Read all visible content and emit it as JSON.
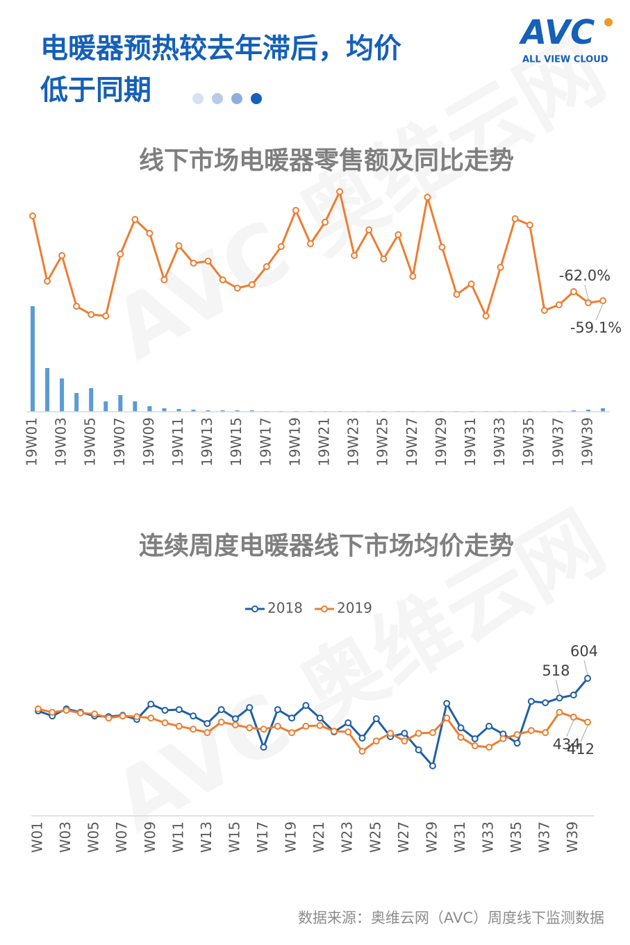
{
  "header": {
    "title_line1": "电暖器预热较去年滞后，均价",
    "title_line2": "低于同期"
  },
  "logo": {
    "mark": "AVC",
    "tagline": "ALL VIEW CLOUD"
  },
  "source": "数据来源：奥维云网（AVC）周度线下监测数据",
  "chart_data": [
    {
      "type": "combo",
      "title": "线下市场电暖器零售额及同比走势",
      "categories": [
        "19W01",
        null,
        "19W03",
        null,
        "19W05",
        null,
        "19W07",
        null,
        "19W09",
        null,
        "19W11",
        null,
        "19W13",
        null,
        "19W15",
        null,
        "19W17",
        null,
        "19W19",
        null,
        "19W21",
        null,
        "19W23",
        null,
        "19W25",
        null,
        "19W27",
        null,
        "19W29",
        null,
        "19W31",
        null,
        "19W33",
        null,
        "19W35",
        null,
        "19W37",
        null,
        "19W39",
        null
      ],
      "series": [
        {
          "type": "bar",
          "color": "#5b9bd5",
          "values": [
            152,
            63,
            48,
            27,
            34,
            15,
            24,
            15,
            8,
            5,
            4,
            3,
            2,
            2,
            2,
            2,
            1,
            1,
            1,
            1,
            1,
            1,
            1,
            1,
            1,
            1,
            1,
            1,
            1,
            1,
            1,
            1,
            1,
            1,
            1,
            1,
            1,
            2,
            3,
            5
          ]
        },
        {
          "type": "line",
          "color": "#ed7d31",
          "values": [
            63,
            -31,
            6,
            -67,
            -79,
            -81,
            8,
            58,
            38,
            -29,
            20,
            -5,
            -2,
            -29,
            -41,
            -36,
            -10,
            19,
            71,
            23,
            54,
            98,
            6,
            43,
            1,
            36,
            -24,
            90,
            18,
            -50,
            -35,
            -81,
            -11,
            59,
            50,
            -73,
            -65,
            -46,
            -62.0,
            -59.1
          ],
          "value_labels": [
            null,
            null,
            null,
            null,
            null,
            null,
            null,
            null,
            null,
            null,
            null,
            null,
            null,
            null,
            null,
            null,
            null,
            null,
            null,
            null,
            null,
            null,
            null,
            null,
            null,
            null,
            null,
            null,
            null,
            null,
            null,
            null,
            null,
            null,
            null,
            null,
            null,
            null,
            "-62.0%",
            "-59.1%"
          ]
        }
      ]
    },
    {
      "type": "line",
      "title": "连续周度电暖器线下市场均价走势",
      "legend": "top",
      "categories": [
        "W01",
        null,
        "W03",
        null,
        "W05",
        null,
        "W07",
        null,
        "W09",
        null,
        "W11",
        null,
        "W13",
        null,
        "W15",
        null,
        "W17",
        null,
        "W19",
        null,
        "W21",
        null,
        "W23",
        null,
        "W25",
        null,
        "W27",
        null,
        "W29",
        null,
        "W31",
        null,
        "W33",
        null,
        "W35",
        null,
        "W37",
        null,
        "W39",
        null
      ],
      "series": [
        {
          "name": "2018",
          "color": "#1f5fa6",
          "values": [
            461,
            439,
            470,
            455,
            439,
            436,
            442,
            424,
            491,
            464,
            467,
            439,
            406,
            467,
            427,
            476,
            302,
            467,
            430,
            485,
            430,
            369,
            409,
            342,
            427,
            348,
            363,
            290,
            220,
            494,
            387,
            339,
            394,
            360,
            320,
            503,
            497,
            518,
            531,
            604
          ],
          "value_labels": [
            null,
            null,
            null,
            null,
            null,
            null,
            null,
            null,
            null,
            null,
            null,
            null,
            null,
            null,
            null,
            null,
            null,
            null,
            null,
            null,
            null,
            null,
            null,
            null,
            null,
            null,
            null,
            null,
            null,
            null,
            null,
            null,
            null,
            null,
            null,
            null,
            null,
            "518",
            null,
            "604"
          ]
        },
        {
          "name": "2019",
          "color": "#ed7d31",
          "values": [
            470,
            455,
            464,
            452,
            448,
            430,
            439,
            436,
            430,
            409,
            394,
            381,
            366,
            412,
            400,
            387,
            381,
            394,
            366,
            394,
            397,
            372,
            369,
            284,
            329,
            363,
            329,
            363,
            366,
            430,
            345,
            308,
            302,
            339,
            357,
            375,
            366,
            455,
            434,
            412
          ],
          "value_labels": [
            null,
            null,
            null,
            null,
            null,
            null,
            null,
            null,
            null,
            null,
            null,
            null,
            null,
            null,
            null,
            null,
            null,
            null,
            null,
            null,
            null,
            null,
            null,
            null,
            null,
            null,
            null,
            null,
            null,
            null,
            null,
            null,
            null,
            null,
            null,
            null,
            null,
            null,
            "434",
            "412"
          ]
        }
      ]
    }
  ]
}
